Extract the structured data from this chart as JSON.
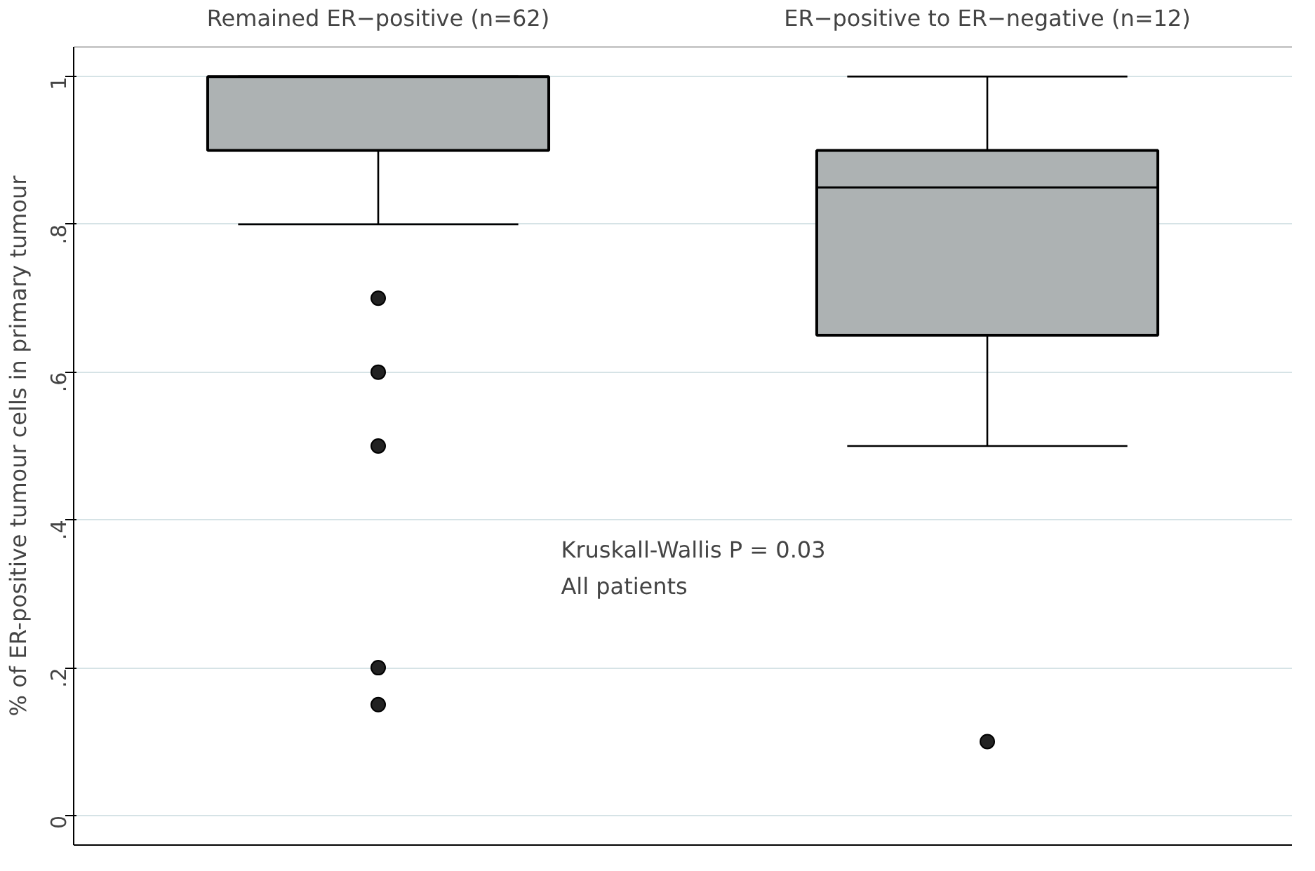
{
  "chart_data": {
    "type": "box",
    "ylabel": "% of ER-positive tumour cells in primary tumour",
    "categories": [
      "Remained ER−positive (n=62)",
      "ER−positive to ER−negative (n=12)"
    ],
    "color": "#adb2b3",
    "ylim": [
      -0.04,
      1.04
    ],
    "yticks": [
      {
        "value": 0,
        "label": "0"
      },
      {
        "value": 0.2,
        "label": ".2"
      },
      {
        "value": 0.4,
        "label": ".4"
      },
      {
        "value": 0.6,
        "label": ".6"
      },
      {
        "value": 0.8,
        "label": ".8"
      },
      {
        "value": 1,
        "label": "1"
      }
    ],
    "grid": "y",
    "boxes": [
      {
        "low": 0.8,
        "q1": 0.9,
        "median": 1.0,
        "q3": 1.0,
        "high": 1.0,
        "outliers": [
          0.7,
          0.6,
          0.5,
          0.2,
          0.15
        ]
      },
      {
        "low": 0.5,
        "q1": 0.65,
        "median": 0.85,
        "q3": 0.9,
        "high": 1.0,
        "outliers": [
          0.1
        ]
      }
    ],
    "annotations": [
      "Kruskall-Wallis P = 0.03",
      "All patients"
    ]
  }
}
